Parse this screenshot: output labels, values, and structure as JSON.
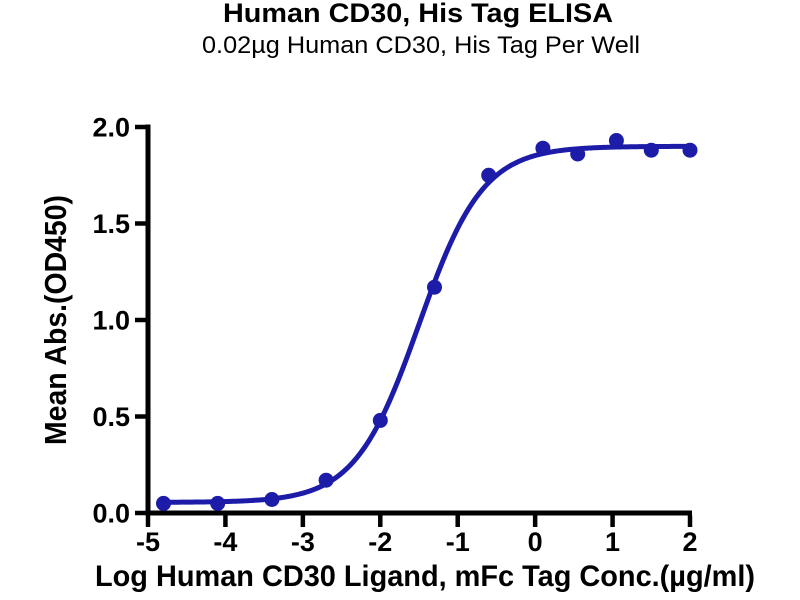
{
  "page": {
    "background_color": "#ffffff",
    "text_color": "#000000"
  },
  "chart": {
    "accent_color": "#1C1CA8",
    "axis_color": "#000000"
  },
  "chart_data": {
    "type": "scatter",
    "title": "Human CD30, His Tag ELISA",
    "subtitle": "0.02µg Human CD30, His Tag Per Well",
    "xlabel": "Log Human CD30 Ligand, mFc Tag Conc.(µg/ml)",
    "ylabel": "Mean Abs.(OD450)",
    "xlim": [
      -5,
      2
    ],
    "ylim": [
      0,
      2
    ],
    "x_ticks": [
      -5,
      -4,
      -3,
      -2,
      -1,
      0,
      1,
      2
    ],
    "x_tick_labels": [
      "-5",
      "-4",
      "-3",
      "-2",
      "-1",
      "0",
      "1",
      "2"
    ],
    "y_ticks": [
      0,
      0.5,
      1,
      1.5,
      2
    ],
    "y_tick_labels": [
      "0.0",
      "0.5",
      "1.0",
      "1.5",
      "2.0"
    ],
    "grid": false,
    "legend": null,
    "series": [
      {
        "name": "Human CD30 Ligand, mFc Tag",
        "color": "#1C1CA8",
        "marker": "circle",
        "marker_radius": 7.5,
        "line_width": 5,
        "points": [
          {
            "x": -4.8,
            "y": 0.05
          },
          {
            "x": -4.1,
            "y": 0.05
          },
          {
            "x": -3.4,
            "y": 0.07
          },
          {
            "x": -2.7,
            "y": 0.17
          },
          {
            "x": -2.0,
            "y": 0.48
          },
          {
            "x": -1.3,
            "y": 1.17
          },
          {
            "x": -0.6,
            "y": 1.75
          },
          {
            "x": 0.1,
            "y": 1.89
          },
          {
            "x": 0.55,
            "y": 1.86
          },
          {
            "x": 1.05,
            "y": 1.93
          },
          {
            "x": 1.5,
            "y": 1.88
          },
          {
            "x": 2.0,
            "y": 1.88
          }
        ],
        "fit_curve_4PL": {
          "bottom": 0.055,
          "top": 1.9,
          "logEC50": -1.5,
          "hill": 1.05,
          "x_start": -4.82,
          "x_end": 2.0
        }
      }
    ]
  }
}
